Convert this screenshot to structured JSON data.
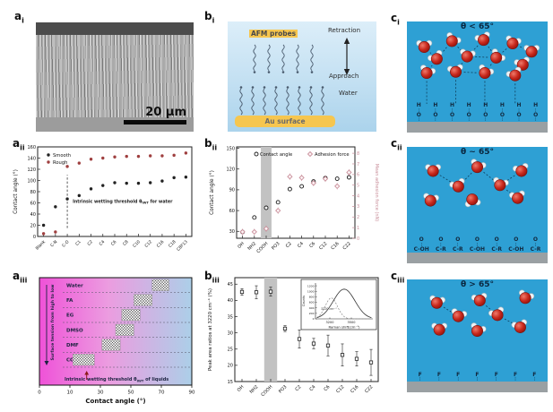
{
  "panels": {
    "a_i": {
      "label_base": "a",
      "label_sub": "i",
      "scale_label": "20 μm"
    },
    "a_ii": {
      "label_base": "a",
      "label_sub": "ii"
    },
    "a_iii": {
      "label_base": "a",
      "label_sub": "iii"
    },
    "b_i": {
      "label_base": "b",
      "label_sub": "i",
      "afm_label": "AFM probes",
      "retraction_label": "Retraction",
      "approach_label": "Approach",
      "water_label": "Water",
      "au_label": "Au surface",
      "probe_chain_count": 5,
      "surface_chain_count": 8
    },
    "b_ii": {
      "label_base": "b",
      "label_sub": "ii"
    },
    "b_iii": {
      "label_base": "b",
      "label_sub": "iii"
    },
    "c_i": {
      "label_base": "c",
      "label_sub": "i",
      "title": "θ < 65°",
      "molecules": [
        [
          0.08,
          0.22,
          0
        ],
        [
          0.3,
          0.12,
          30
        ],
        [
          0.55,
          0.1,
          -20
        ],
        [
          0.78,
          0.16,
          15
        ],
        [
          0.93,
          0.3,
          0
        ],
        [
          0.18,
          0.42,
          -30
        ],
        [
          0.42,
          0.38,
          10
        ],
        [
          0.65,
          0.4,
          40
        ],
        [
          0.86,
          0.52,
          -15
        ],
        [
          0.1,
          0.66,
          20
        ],
        [
          0.33,
          0.64,
          -10
        ],
        [
          0.56,
          0.66,
          25
        ],
        [
          0.8,
          0.7,
          -25
        ]
      ],
      "bonds": [
        [
          0,
          5
        ],
        [
          1,
          5
        ],
        [
          1,
          6
        ],
        [
          2,
          6
        ],
        [
          2,
          7
        ],
        [
          3,
          7
        ],
        [
          3,
          4
        ],
        [
          4,
          8
        ],
        [
          5,
          9
        ],
        [
          6,
          10
        ],
        [
          7,
          11
        ],
        [
          8,
          12
        ],
        [
          10,
          11
        ],
        [
          6,
          7
        ]
      ],
      "drops": [
        9,
        10,
        11,
        12
      ],
      "surface_columns": [
        [
          "H",
          "¦",
          "O",
          "¦"
        ],
        [
          "H",
          "¦",
          "O",
          "¦"
        ],
        [
          "H",
          "¦",
          "O",
          "¦"
        ],
        [
          "H",
          "¦",
          "O",
          "¦"
        ],
        [
          "H",
          "¦",
          "O",
          "¦"
        ],
        [
          "H",
          "¦",
          "O",
          "¦"
        ],
        [
          "H",
          "¦",
          "O",
          "¦"
        ],
        [
          "H",
          "¦",
          "O",
          "¦"
        ]
      ]
    },
    "c_ii": {
      "label_base": "c",
      "label_sub": "ii",
      "title": "θ ~ 65°",
      "molecules": [
        [
          0.15,
          0.18,
          0
        ],
        [
          0.5,
          0.12,
          20
        ],
        [
          0.85,
          0.18,
          -15
        ],
        [
          0.35,
          0.42,
          -20
        ],
        [
          0.68,
          0.4,
          15
        ],
        [
          0.13,
          0.64,
          10
        ],
        [
          0.46,
          0.62,
          170
        ],
        [
          0.82,
          0.6,
          -10
        ]
      ],
      "bonds": [
        [
          0,
          3
        ],
        [
          1,
          3
        ],
        [
          1,
          4
        ],
        [
          2,
          4
        ],
        [
          4,
          7
        ]
      ],
      "drops": [],
      "surface_columns": [
        [
          "O",
          "¦",
          "C-OH"
        ],
        [
          "O",
          "¦",
          "C-R"
        ],
        [
          "O",
          "¦",
          "C-R"
        ],
        [
          "O",
          "¦",
          "C-OH"
        ],
        [
          "O",
          "¦",
          "C-R"
        ],
        [
          "O",
          "¦",
          "C-OH"
        ],
        [
          "O",
          "¦",
          "C-R"
        ]
      ]
    },
    "c_iii": {
      "label_base": "c",
      "label_sub": "iii",
      "title": "θ > 65°",
      "molecules": [
        [
          0.18,
          0.18,
          10
        ],
        [
          0.52,
          0.14,
          -10
        ],
        [
          0.88,
          0.1,
          20
        ],
        [
          0.35,
          0.4,
          15
        ],
        [
          0.66,
          0.38,
          -20
        ],
        [
          0.2,
          0.62,
          0
        ],
        [
          0.5,
          0.64,
          20
        ],
        [
          0.84,
          0.58,
          -15
        ]
      ],
      "bonds": [
        [
          0,
          3
        ],
        [
          1,
          4
        ],
        [
          4,
          7
        ]
      ],
      "drops": [],
      "surface_columns": [
        [
          "F",
          "¦"
        ],
        [
          "F",
          "¦"
        ],
        [
          "F",
          "¦"
        ],
        [
          "F",
          "¦"
        ],
        [
          "F",
          "¦"
        ],
        [
          "F",
          "¦"
        ],
        [
          "F",
          "¦"
        ]
      ]
    }
  },
  "chart_data": [
    {
      "id": "a_ii",
      "type": "scatter",
      "categories": [
        "Blank",
        "C-N",
        "C-O",
        "C1",
        "C2",
        "C4",
        "C6",
        "C8",
        "C10",
        "C12",
        "C16",
        "C18",
        "C8F13"
      ],
      "series": [
        {
          "name": "Smooth",
          "color": "#222222",
          "values": [
            20,
            53,
            67,
            73,
            85,
            91,
            96,
            95,
            95,
            96,
            99,
            105,
            106
          ],
          "error": 2
        },
        {
          "name": "Rough",
          "color": "#9f3f3f",
          "values": [
            5,
            8,
            125,
            131,
            138,
            140,
            142,
            143,
            143,
            144,
            144,
            145,
            149
          ],
          "error": 2
        }
      ],
      "ylabel": "Contact angle (°)",
      "ylim": [
        0,
        160
      ],
      "yticks": [
        0,
        20,
        40,
        60,
        80,
        100,
        120,
        140,
        160
      ],
      "threshold": {
        "category": "C-O",
        "from": 15,
        "to": 110,
        "label_pre": "Intrinsic wetting threshold θ",
        "label_sub": "IWT",
        "label_post": " for water"
      },
      "legend_position": "top-left",
      "grid": false
    },
    {
      "id": "b_ii",
      "type": "scatter-dual",
      "categories": [
        "OH",
        "NH2",
        "COOH",
        "PO3",
        "C2",
        "C4",
        "C6",
        "C12",
        "C16",
        "C22"
      ],
      "series": [
        {
          "name": "Contact angle",
          "axis": "left",
          "marker": "circle",
          "color": "#1a1a1a",
          "values": [
            29,
            50,
            64,
            72,
            91,
            95,
            102,
            107,
            106,
            108
          ],
          "error": 2
        },
        {
          "name": "Adhesion force",
          "axis": "right",
          "marker": "diamond",
          "color": "#c98f9b",
          "values": [
            0.6,
            0.6,
            0.9,
            2.6,
            5.8,
            5.7,
            5.2,
            5.6,
            4.9,
            6.2
          ],
          "error": 0.3
        }
      ],
      "ylabel_left": "Contact angle (°)",
      "ylim_left": [
        20,
        152
      ],
      "yticks_left": [
        30,
        60,
        90,
        120,
        150
      ],
      "ylabel_right": "Mean adhesion force (nN)",
      "ylim_right": [
        0,
        8.6
      ],
      "yticks_right": [
        0,
        1,
        2,
        3,
        4,
        5,
        6,
        7,
        8
      ],
      "band_category": "COOH",
      "legend_position": "top",
      "grid": false
    },
    {
      "id": "b_iii",
      "type": "scatter-error",
      "categories": [
        "OH",
        "NH2",
        "COOH",
        "PO3",
        "C2",
        "C4",
        "C6",
        "C12",
        "C16",
        "C22"
      ],
      "values": [
        42.6,
        42.5,
        42.7,
        31.3,
        28.1,
        26.7,
        26.1,
        23.2,
        22.0,
        20.9
      ],
      "errors": [
        1.0,
        2.0,
        1.4,
        0.9,
        2.8,
        1.6,
        3.2,
        3.4,
        2.2,
        4.0
      ],
      "ylabel": "Peak area ratios at 3220 cm⁻¹ (%)",
      "ylim": [
        15,
        47
      ],
      "yticks": [
        15,
        20,
        25,
        30,
        35,
        40,
        45
      ],
      "band_category": "COOH",
      "grid": false,
      "inset": {
        "type": "line",
        "ylabel": "Counts",
        "ylim": [
          0,
          1300
        ],
        "yticks": [
          0,
          200,
          400,
          600,
          800,
          1000,
          1200
        ],
        "xlabel": "Raman shift(cm⁻¹)",
        "xlim": [
          3000,
          3800
        ],
        "xticks": [
          3200,
          3500
        ],
        "annotation": "3220 cm⁻¹",
        "main_peak": {
          "center": 3400,
          "sigma": 150,
          "amplitude": 1080
        },
        "sub_peak": {
          "center": 3220,
          "sigma": 85,
          "amplitude": 760
        }
      }
    },
    {
      "id": "a_iii",
      "type": "range-bars",
      "rows": [
        {
          "label": "Water",
          "range_deg": [
            64,
            75
          ]
        },
        {
          "label": "FA",
          "range_deg": [
            52,
            64
          ]
        },
        {
          "label": "EG",
          "range_deg": [
            44,
            56
          ]
        },
        {
          "label": "DMSO",
          "range_deg": [
            40,
            52
          ]
        },
        {
          "label": "DMF",
          "range_deg": [
            31,
            43
          ]
        },
        {
          "label": "CCl",
          "label_sub": "4",
          "range_deg": [
            12,
            26
          ]
        }
      ],
      "xlabel": "Contact angle (°)",
      "xticks": [
        0,
        10,
        30,
        50,
        70,
        90
      ],
      "xlim": [
        0,
        90
      ],
      "ylabel": "Surface tension from high to low",
      "annotation_pre": "Intrinsic wetting threshold θ",
      "annotation_sub": "IWT",
      "annotation_post": " of liquids",
      "annotation_arrow_deg": 21,
      "grid": false
    }
  ],
  "colors": {
    "accent_gold": "#f6c64f",
    "panel_blue": "#2ea0d4",
    "substrate_gray": "#9aa0a3",
    "oxygen_red": "#c8281c",
    "hydrogen_white": "#eef3f6",
    "bond_navy": "#0e3f5c",
    "rough_red": "#9f3f3f",
    "adhesion_pink": "#c98f9b",
    "band_gray": "#c2c2c2",
    "gradient_magenta": "#ef52d8",
    "gradient_blue": "#accfe8",
    "chain_gray": "#47586b"
  }
}
